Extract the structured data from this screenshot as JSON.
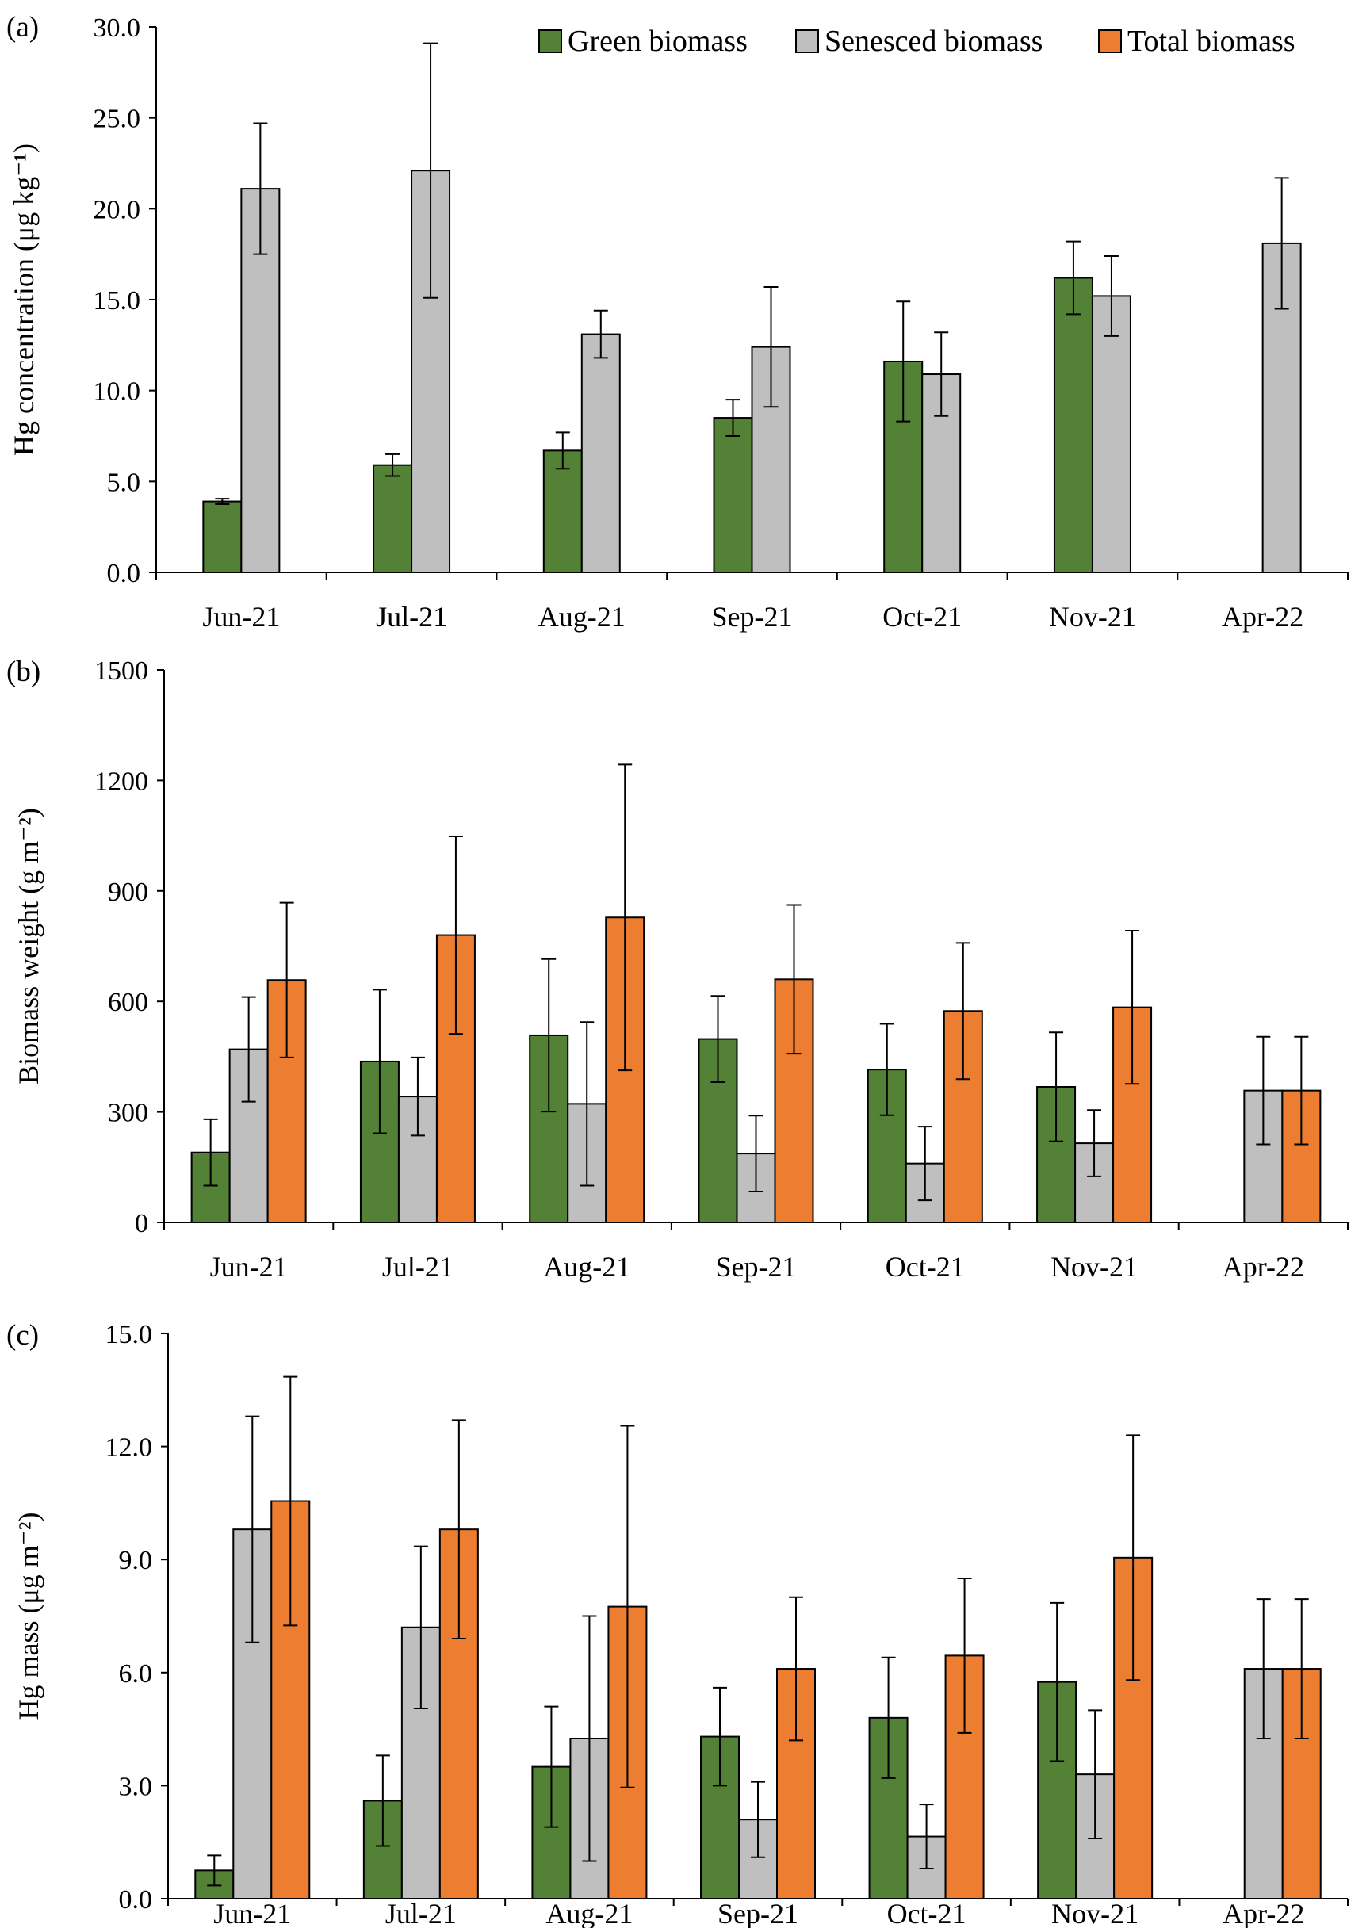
{
  "colors": {
    "green": "#538135",
    "senesced": "#bfbfbf",
    "total": "#ed7d31"
  },
  "legend": {
    "items": [
      {
        "label": "Green biomass",
        "color_key": "green"
      },
      {
        "label": "Senesced biomass",
        "color_key": "senesced"
      },
      {
        "label": "Total biomass",
        "color_key": "total"
      }
    ]
  },
  "chart_data": [
    {
      "panel": "(a)",
      "type": "bar",
      "ylabel": "Hg concentration (μg kg⁻¹)",
      "ylim": [
        0,
        30
      ],
      "yticks": [
        "0.0",
        "5.0",
        "10.0",
        "15.0",
        "20.0",
        "25.0",
        "30.0"
      ],
      "categories": [
        "Jun-21",
        "Jul-21",
        "Aug-21",
        "Sep-21",
        "Oct-21",
        "Nov-21",
        "Apr-22"
      ],
      "series": [
        {
          "name": "Green biomass",
          "color_key": "green",
          "values": [
            3.9,
            5.9,
            6.7,
            8.5,
            11.6,
            16.2,
            null
          ],
          "errors": [
            0.15,
            0.6,
            1.0,
            1.0,
            3.3,
            2.0,
            null
          ]
        },
        {
          "name": "Senesced biomass",
          "color_key": "senesced",
          "values": [
            21.1,
            22.1,
            13.1,
            12.4,
            10.9,
            15.2,
            18.1
          ],
          "errors": [
            3.6,
            7.0,
            1.3,
            3.3,
            2.3,
            2.2,
            3.6
          ]
        }
      ]
    },
    {
      "panel": "(b)",
      "type": "bar",
      "ylabel": "Biomass weight (g m⁻²)",
      "ylim": [
        0,
        1500
      ],
      "yticks": [
        "0",
        "300",
        "600",
        "900",
        "1200",
        "1500"
      ],
      "categories": [
        "Jun-21",
        "Jul-21",
        "Aug-21",
        "Sep-21",
        "Oct-21",
        "Nov-21",
        "Apr-22"
      ],
      "series": [
        {
          "name": "Green biomass",
          "color_key": "green",
          "values": [
            190,
            437,
            508,
            498,
            415,
            368,
            null
          ],
          "errors": [
            90,
            195,
            207,
            117,
            124,
            148,
            null
          ]
        },
        {
          "name": "Senesced biomass",
          "color_key": "senesced",
          "values": [
            470,
            342,
            322,
            187,
            160,
            215,
            358
          ],
          "errors": [
            142,
            106,
            222,
            103,
            100,
            90,
            146
          ]
        },
        {
          "name": "Total biomass",
          "color_key": "total",
          "values": [
            658,
            780,
            828,
            660,
            574,
            584,
            358
          ],
          "errors": [
            210,
            268,
            415,
            202,
            185,
            208,
            146
          ]
        }
      ]
    },
    {
      "panel": "(c)",
      "type": "bar",
      "ylabel": "Hg mass (μg m⁻²)",
      "ylim": [
        0,
        15
      ],
      "yticks": [
        "0.0",
        "3.0",
        "6.0",
        "9.0",
        "12.0",
        "15.0"
      ],
      "categories": [
        "Jun-21",
        "Jul-21",
        "Aug-21",
        "Sep-21",
        "Oct-21",
        "Nov-21",
        "Apr-22"
      ],
      "series": [
        {
          "name": "Green biomass",
          "color_key": "green",
          "values": [
            0.75,
            2.6,
            3.5,
            4.3,
            4.8,
            5.75,
            null
          ],
          "errors": [
            0.4,
            1.2,
            1.6,
            1.3,
            1.6,
            2.1,
            null
          ]
        },
        {
          "name": "Senesced biomass",
          "color_key": "senesced",
          "values": [
            9.8,
            7.2,
            4.25,
            2.1,
            1.65,
            3.3,
            6.1
          ],
          "errors": [
            3.0,
            2.15,
            3.25,
            1.0,
            0.85,
            1.7,
            1.85
          ]
        },
        {
          "name": "Total biomass",
          "color_key": "total",
          "values": [
            10.55,
            9.8,
            7.75,
            6.1,
            6.45,
            9.05,
            6.1
          ],
          "errors": [
            3.3,
            2.9,
            4.8,
            1.9,
            2.05,
            3.25,
            1.85
          ]
        }
      ]
    }
  ]
}
